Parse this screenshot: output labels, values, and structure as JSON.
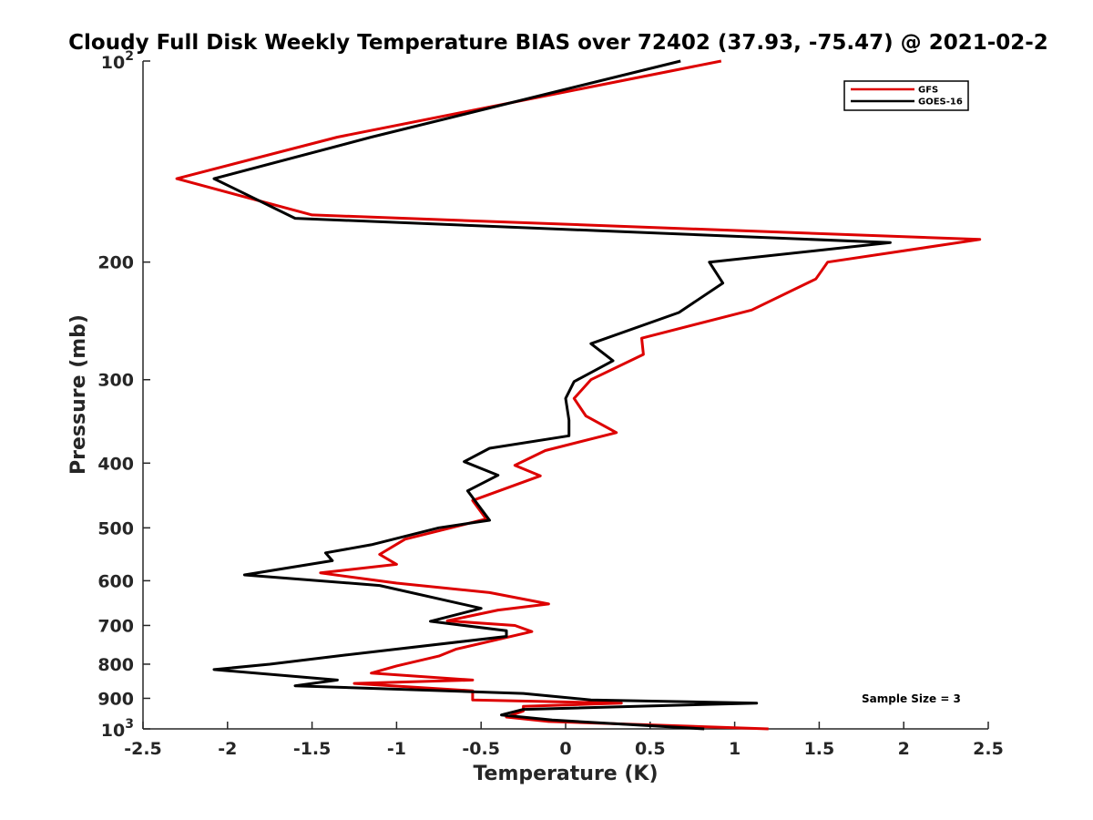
{
  "chart_data": {
    "type": "line",
    "title": "Cloudy Full Disk Weekly Temperature BIAS over 72402 (37.93, -75.47) @ 2021-02-2",
    "xlabel": "Temperature (K)",
    "ylabel": "Pressure (mb)",
    "xlim": [
      -2.5,
      2.5
    ],
    "ylim": [
      100,
      1000
    ],
    "yscale": "log",
    "y_reversed": true,
    "grid": false,
    "legend_placement": "top-right",
    "x_ticks": [
      "-2.5",
      "-2",
      "-1.5",
      "-1",
      "-0.5",
      "0",
      "0.5",
      "1",
      "1.5",
      "2",
      "2.5"
    ],
    "y_ticks": [
      {
        "value": 200,
        "label": "200"
      },
      {
        "value": 300,
        "label": "300"
      },
      {
        "value": 400,
        "label": "400"
      },
      {
        "value": 500,
        "label": "500"
      },
      {
        "value": 600,
        "label": "600"
      },
      {
        "value": 700,
        "label": "700"
      },
      {
        "value": 800,
        "label": "800"
      },
      {
        "value": 900,
        "label": "900"
      }
    ],
    "y_tick_power_labels": [
      {
        "value": 100,
        "base": "10",
        "exp": "2"
      },
      {
        "value": 1000,
        "base": "10",
        "exp": "3"
      }
    ],
    "annotation": "Sample Size = 3",
    "series": [
      {
        "name": "GFS",
        "color": "#dd0000",
        "points": [
          [
            0.92,
            100
          ],
          [
            -1.35,
            130
          ],
          [
            -2.3,
            150
          ],
          [
            -1.5,
            170
          ],
          [
            2.45,
            185
          ],
          [
            1.55,
            200
          ],
          [
            1.48,
            212
          ],
          [
            1.1,
            236
          ],
          [
            0.45,
            260
          ],
          [
            0.46,
            275
          ],
          [
            0.15,
            300
          ],
          [
            0.05,
            320
          ],
          [
            0.12,
            340
          ],
          [
            0.3,
            360
          ],
          [
            -0.12,
            383
          ],
          [
            -0.3,
            403
          ],
          [
            -0.15,
            418
          ],
          [
            -0.55,
            455
          ],
          [
            -0.47,
            485
          ],
          [
            -0.95,
            520
          ],
          [
            -1.1,
            548
          ],
          [
            -1.0,
            567
          ],
          [
            -1.45,
            584
          ],
          [
            -1.0,
            605
          ],
          [
            -0.45,
            625
          ],
          [
            -0.1,
            650
          ],
          [
            -0.4,
            664
          ],
          [
            -0.7,
            689
          ],
          [
            -0.3,
            700
          ],
          [
            -0.2,
            715
          ],
          [
            -0.65,
            760
          ],
          [
            -0.75,
            778
          ],
          [
            -1.0,
            805
          ],
          [
            -1.15,
            825
          ],
          [
            -0.55,
            845
          ],
          [
            -1.25,
            855
          ],
          [
            -0.55,
            877
          ],
          [
            -0.55,
            905
          ],
          [
            0.33,
            915
          ],
          [
            -0.25,
            925
          ],
          [
            -0.25,
            940
          ],
          [
            -0.35,
            960
          ],
          [
            -0.1,
            975
          ],
          [
            1.2,
            1000
          ]
        ]
      },
      {
        "name": "GOES-16",
        "color": "#000000",
        "points": [
          [
            0.68,
            100
          ],
          [
            -1.15,
            130
          ],
          [
            -2.08,
            150
          ],
          [
            -1.6,
            172
          ],
          [
            1.92,
            187
          ],
          [
            0.85,
            200
          ],
          [
            0.93,
            215
          ],
          [
            0.67,
            238
          ],
          [
            0.15,
            265
          ],
          [
            0.28,
            281
          ],
          [
            0.05,
            302
          ],
          [
            0.0,
            320
          ],
          [
            0.02,
            345
          ],
          [
            0.02,
            364
          ],
          [
            -0.45,
            380
          ],
          [
            -0.6,
            398
          ],
          [
            -0.4,
            417
          ],
          [
            -0.58,
            440
          ],
          [
            -0.45,
            487
          ],
          [
            -0.75,
            500
          ],
          [
            -1.15,
            530
          ],
          [
            -1.42,
            545
          ],
          [
            -1.38,
            560
          ],
          [
            -1.9,
            588
          ],
          [
            -1.1,
            610
          ],
          [
            -0.5,
            660
          ],
          [
            -0.55,
            665
          ],
          [
            -0.8,
            690
          ],
          [
            -0.35,
            713
          ],
          [
            -0.35,
            727
          ],
          [
            -1.3,
            775
          ],
          [
            -1.75,
            800
          ],
          [
            -2.08,
            815
          ],
          [
            -1.35,
            845
          ],
          [
            -1.6,
            862
          ],
          [
            -0.25,
            885
          ],
          [
            0.15,
            905
          ],
          [
            1.13,
            915
          ],
          [
            -0.25,
            935
          ],
          [
            -0.38,
            953
          ],
          [
            -0.08,
            970
          ],
          [
            0.82,
            1000
          ]
        ]
      }
    ]
  }
}
